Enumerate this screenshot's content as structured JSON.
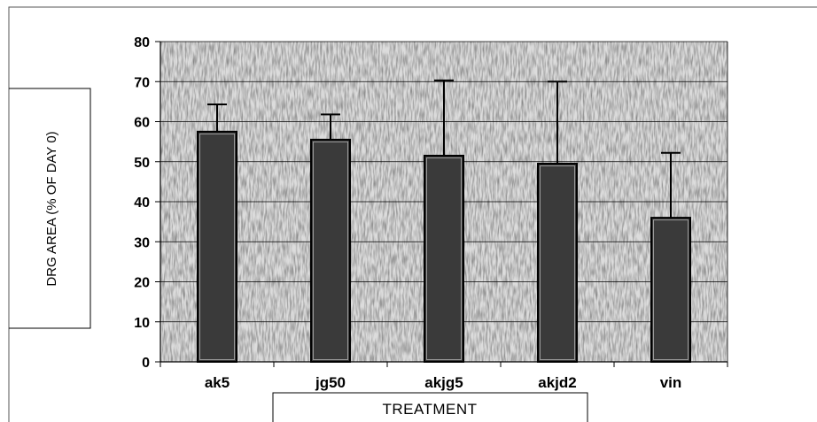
{
  "chart_data": {
    "type": "bar",
    "categories": [
      "ak5",
      "jg50",
      "akjg5",
      "akjd2",
      "vin"
    ],
    "values": [
      57.5,
      55.5,
      51.5,
      49.5,
      36
    ],
    "error_upper": [
      64.3,
      61.8,
      70.3,
      70,
      52.2
    ],
    "xlabel": "TREATMENT",
    "ylabel": "DRG AREA (% OF DAY 0)",
    "ylim": [
      0,
      80
    ],
    "yticks": [
      0,
      10,
      20,
      30,
      40,
      50,
      60,
      70,
      80
    ],
    "grid": true,
    "legend": "none",
    "colors": {
      "bar_fill": "#3a3a3a",
      "bar_outline": "#000000",
      "plot_background": "#d9d9d9",
      "gridline": "#000000",
      "axis": "#000000"
    }
  }
}
